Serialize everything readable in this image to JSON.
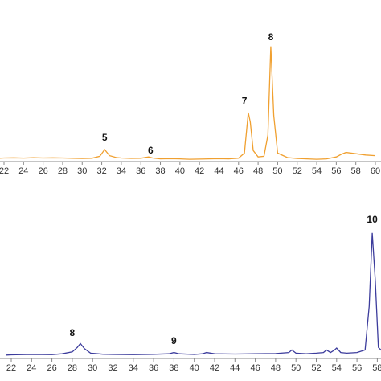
{
  "chart_data": [
    {
      "type": "line",
      "x": [
        21.5,
        22,
        23,
        24,
        25,
        26,
        27,
        28,
        29,
        30,
        31,
        31.8,
        32.3,
        32.8,
        33.5,
        34,
        35,
        36,
        36.8,
        37.2,
        38,
        39,
        40,
        41,
        42,
        43,
        44,
        45,
        46,
        46.6,
        47,
        47.2,
        47.5,
        48,
        48.6,
        49,
        49.3,
        49.6,
        50,
        51,
        52,
        53,
        54,
        55,
        56,
        56.5,
        57,
        58,
        59,
        60
      ],
      "series": [
        {
          "color": "#f0a030",
          "values": [
            2,
            2.2,
            2.3,
            2.1,
            2.4,
            2.2,
            2.3,
            2.2,
            2,
            1.8,
            2,
            3.5,
            8.7,
            4,
            2.5,
            2.2,
            1.9,
            2,
            3,
            2.2,
            1.5,
            1.6,
            1.5,
            1.2,
            1.3,
            1.5,
            1.6,
            1.5,
            2,
            6,
            37.5,
            30,
            8,
            3,
            3.5,
            20,
            89,
            35,
            6,
            2.5,
            1.8,
            1.5,
            1.2,
            1.5,
            3,
            5,
            6.5,
            5.5,
            4.5,
            4
          ]
        }
      ],
      "xlim": [
        22,
        60
      ],
      "ylim": [
        0,
        100
      ],
      "xticks": [
        22,
        24,
        26,
        28,
        30,
        32,
        34,
        36,
        38,
        40,
        42,
        44,
        46,
        48,
        50,
        52,
        54,
        56,
        58,
        60
      ],
      "annotations": [
        {
          "text": "5",
          "x": 32.3,
          "y": 17.5
        },
        {
          "text": "6",
          "x": 37,
          "y": 7.5
        },
        {
          "text": "7",
          "x": 46.6,
          "y": 46
        },
        {
          "text": "8",
          "x": 49.3,
          "y": 95.6
        }
      ]
    },
    {
      "type": "line",
      "x": [
        21.5,
        22,
        24,
        26,
        27,
        28,
        28.5,
        28.8,
        29.2,
        29.8,
        31,
        32,
        34,
        36,
        37.5,
        38,
        38.5,
        40,
        40.8,
        41.2,
        42,
        44,
        46,
        48,
        49.3,
        49.6,
        50,
        51,
        52,
        52.7,
        53,
        53.4,
        53.8,
        54,
        54.4,
        55,
        56,
        56.8,
        57.2,
        57.5,
        57.8,
        58.1,
        58.5,
        59,
        60
      ],
      "series": [
        {
          "color": "#3c3c9c",
          "values": [
            2,
            2.2,
            2.5,
            2.4,
            3,
            4.5,
            8,
            11,
            7,
            3.5,
            2.7,
            2.5,
            2.4,
            2.6,
            3,
            4,
            3,
            2.5,
            3,
            4,
            3,
            2.8,
            3,
            3.2,
            4,
            6,
            3.5,
            3,
            3.5,
            4,
            6,
            4,
            6,
            7.5,
            4,
            3.5,
            4,
            6,
            40,
            97,
            60,
            8,
            5,
            4,
            3.5
          ]
        }
      ],
      "xlim": [
        22,
        60
      ],
      "ylim": [
        0,
        110
      ],
      "xticks": [
        22,
        24,
        26,
        28,
        30,
        32,
        34,
        36,
        38,
        40,
        42,
        44,
        46,
        48,
        50,
        52,
        54,
        56,
        58
      ],
      "annotations": [
        {
          "text": "8",
          "x": 28,
          "y": 19
        },
        {
          "text": "9",
          "x": 38,
          "y": 12.5
        },
        {
          "text": "10",
          "x": 57.5,
          "y": 107
        }
      ]
    }
  ]
}
